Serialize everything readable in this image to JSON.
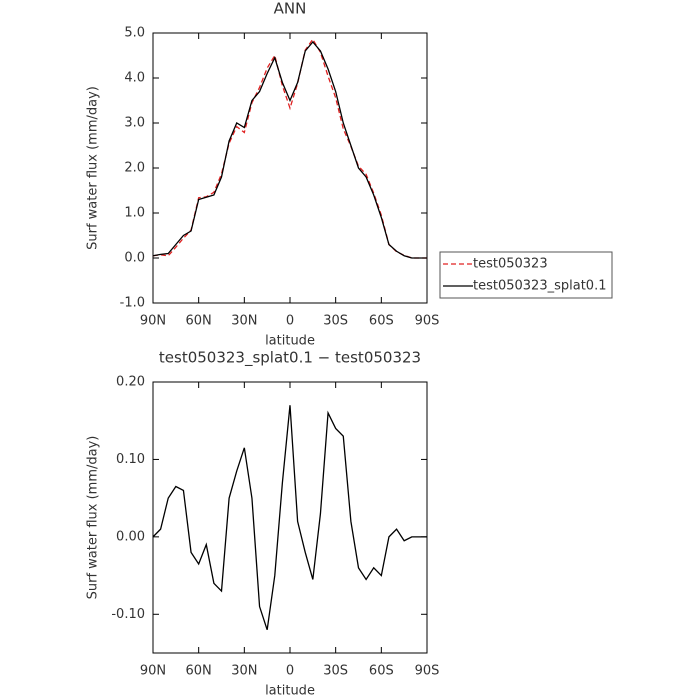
{
  "chart_data": [
    {
      "type": "line",
      "title": "ANN",
      "xlabel": "latitude",
      "ylabel": "Surf water flux (mm/day)",
      "x": [
        90,
        85,
        80,
        75,
        70,
        65,
        60,
        55,
        50,
        45,
        40,
        35,
        30,
        25,
        20,
        15,
        10,
        5,
        0,
        -5,
        -10,
        -15,
        -20,
        -25,
        -30,
        -35,
        -40,
        -45,
        -50,
        -55,
        -60,
        -65,
        -70,
        -75,
        -80,
        -85,
        -90
      ],
      "xlim": [
        90,
        -90
      ],
      "xticks": [
        {
          "value": 90,
          "label": "90N"
        },
        {
          "value": 60,
          "label": "60N"
        },
        {
          "value": 30,
          "label": "30N"
        },
        0,
        {
          "value": -30,
          "label": "30S"
        },
        {
          "value": -60,
          "label": "60S"
        },
        {
          "value": -90,
          "label": "90S"
        }
      ],
      "ylim": [
        -1,
        5
      ],
      "yticks": [
        {
          "value": -1,
          "label": "-1.0"
        },
        {
          "value": 0,
          "label": "0.0"
        },
        {
          "value": 1,
          "label": "1.0"
        },
        {
          "value": 2,
          "label": "2.0"
        },
        {
          "value": 3,
          "label": "3.0"
        },
        {
          "value": 4,
          "label": "4.0"
        },
        {
          "value": 5,
          "label": "5.0"
        }
      ],
      "legend": "right",
      "series": [
        {
          "name": "test050323",
          "color": "#e02020",
          "linestyle": "dashed",
          "values": [
            0.05,
            0.07,
            0.05,
            0.24,
            0.44,
            0.62,
            1.34,
            1.36,
            1.46,
            1.87,
            2.55,
            2.92,
            2.79,
            3.45,
            3.79,
            4.22,
            4.5,
            3.83,
            3.33,
            3.88,
            4.62,
            4.86,
            4.57,
            4.04,
            3.56,
            2.87,
            2.48,
            2.04,
            1.86,
            1.44,
            0.95,
            0.3,
            0.14,
            0.06,
            0,
            0,
            0
          ]
        },
        {
          "name": "test050323_splat0.1",
          "color": "#000000",
          "linestyle": "solid",
          "values": [
            0.05,
            0.08,
            0.1,
            0.3,
            0.5,
            0.6,
            1.3,
            1.35,
            1.4,
            1.8,
            2.6,
            3.0,
            2.9,
            3.5,
            3.7,
            4.1,
            4.45,
            3.9,
            3.5,
            3.9,
            4.6,
            4.8,
            4.6,
            4.2,
            3.7,
            3.0,
            2.5,
            2.0,
            1.8,
            1.4,
            0.9,
            0.3,
            0.15,
            0.05,
            0,
            0,
            0
          ]
        }
      ]
    },
    {
      "type": "line",
      "title": "test050323_splat0.1 − test050323",
      "xlabel": "latitude",
      "ylabel": "Surf water flux (mm/day)",
      "x": [
        90,
        85,
        80,
        75,
        70,
        65,
        60,
        55,
        50,
        45,
        40,
        35,
        30,
        25,
        20,
        15,
        10,
        5,
        0,
        -5,
        -10,
        -15,
        -20,
        -25,
        -30,
        -35,
        -40,
        -45,
        -50,
        -55,
        -60,
        -65,
        -70,
        -75,
        -80,
        -85,
        -90
      ],
      "xlim": [
        90,
        -90
      ],
      "xticks": [
        {
          "value": 90,
          "label": "90N"
        },
        {
          "value": 60,
          "label": "60N"
        },
        {
          "value": 30,
          "label": "30N"
        },
        0,
        {
          "value": -30,
          "label": "30S"
        },
        {
          "value": -60,
          "label": "60S"
        },
        {
          "value": -90,
          "label": "90S"
        }
      ],
      "ylim": [
        -0.15,
        0.2
      ],
      "yticks": [
        {
          "value": -0.1,
          "label": "-0.10"
        },
        {
          "value": 0,
          "label": "0.00"
        },
        {
          "value": 0.1,
          "label": "0.10"
        },
        {
          "value": 0.2,
          "label": "0.20"
        }
      ],
      "series": [
        {
          "color": "#000000",
          "linestyle": "solid",
          "values": [
            0,
            0.01,
            0.05,
            0.065,
            0.06,
            -0.02,
            -0.035,
            -0.01,
            -0.06,
            -0.07,
            0.05,
            0.085,
            0.115,
            0.05,
            -0.09,
            -0.12,
            -0.05,
            0.07,
            0.17,
            0.02,
            -0.02,
            -0.055,
            0.03,
            0.16,
            0.14,
            0.13,
            0.02,
            -0.04,
            -0.055,
            -0.04,
            -0.05,
            0,
            0.01,
            -0.005,
            0,
            0,
            0
          ]
        }
      ]
    }
  ]
}
